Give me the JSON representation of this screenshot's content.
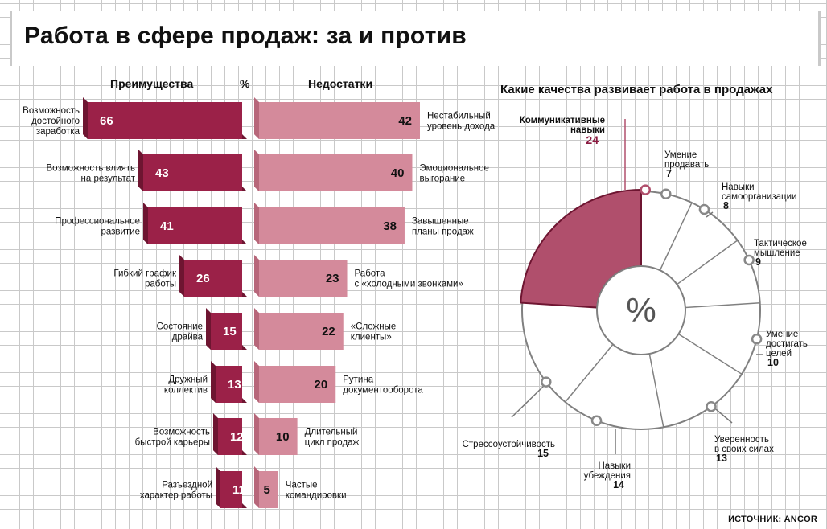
{
  "title": "Работа в сфере продаж: за и против",
  "source": "ИСТОЧНИК: ANCOR",
  "colors": {
    "pros": "#9b2148",
    "pros_side": "#6e1531",
    "cons": "#d48a9b",
    "cons_side": "#b7677a",
    "donut_highlight": "#b04f6c",
    "donut_line": "#808080",
    "label_highlight": "#8a1a40"
  },
  "chart_data": [
    {
      "type": "bar",
      "orientation": "horizontal-diverging",
      "percent_label": "%",
      "pros": {
        "header": "Преимущества",
        "categories": [
          [
            "Возможность",
            "достойного",
            "заработка"
          ],
          [
            "Возможность влиять",
            "на результат"
          ],
          [
            "Профессиональное",
            "развитие"
          ],
          [
            "Гибкий график",
            "работы"
          ],
          [
            "Состояние",
            "драйва"
          ],
          [
            "Дружный",
            "коллектив"
          ],
          [
            "Возможность",
            "быстрой карьеры"
          ],
          [
            "Разъездной",
            "характер работы"
          ]
        ],
        "values": [
          66,
          43,
          41,
          26,
          15,
          13,
          12,
          11
        ]
      },
      "cons": {
        "header": "Недостатки",
        "categories": [
          [
            "Нестабильный",
            "уровень дохода"
          ],
          [
            "Эмоциональное",
            "выгорание"
          ],
          [
            "Завышенные",
            "планы продаж"
          ],
          [
            "Работа",
            "с «холодными звонками»"
          ],
          [
            "«Сложные",
            "клиенты»"
          ],
          [
            "Рутина",
            "документооборота"
          ],
          [
            "Длительный",
            "цикл продаж"
          ],
          [
            "Частые",
            "командировки"
          ]
        ],
        "values": [
          42,
          40,
          38,
          23,
          22,
          20,
          10,
          5
        ]
      }
    },
    {
      "type": "pie",
      "title": "Какие качества развивает работа в продажах",
      "center_label": "%",
      "highlight_index": 0,
      "slices": [
        {
          "label": [
            "Коммуникативные",
            "навыки"
          ],
          "value": 24
        },
        {
          "label": [
            "Умение",
            "продавать"
          ],
          "value": 7
        },
        {
          "label": [
            "Навыки",
            "самоорганизации"
          ],
          "value": 8
        },
        {
          "label": [
            "Тактическое",
            "мышление"
          ],
          "value": 9
        },
        {
          "label": [
            "Умение",
            "достигать",
            "целей"
          ],
          "value": 10
        },
        {
          "label": [
            "Уверенность",
            "в своих силах"
          ],
          "value": 13
        },
        {
          "label": [
            "Навыки",
            "убеждения"
          ],
          "value": 14
        },
        {
          "label": [
            "Стрессоустойчивость"
          ],
          "value": 15
        }
      ]
    }
  ]
}
